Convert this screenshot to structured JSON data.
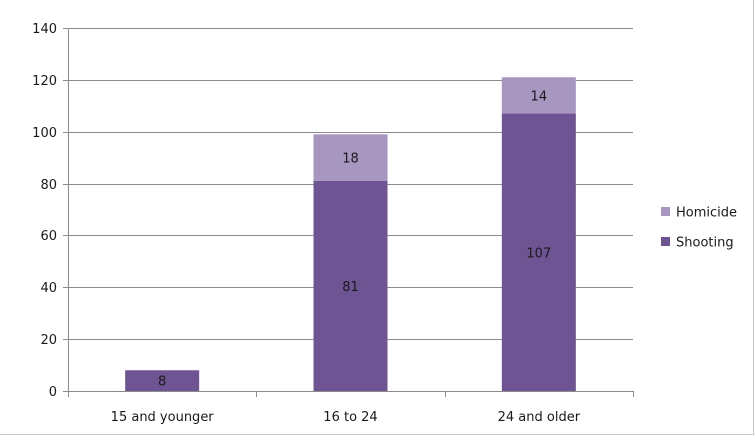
{
  "chart_data": {
    "type": "bar",
    "stacked": true,
    "categories": [
      "15 and younger",
      "16 to 24",
      "24 and older"
    ],
    "series": [
      {
        "name": "Shooting",
        "color": "#6f5493",
        "values": [
          8,
          81,
          107
        ]
      },
      {
        "name": "Homicide",
        "color": "#a696c0",
        "values": [
          0,
          18,
          14
        ]
      }
    ],
    "data_labels": [
      [
        "8",
        "81",
        "107"
      ],
      [
        "",
        "18",
        "14"
      ]
    ],
    "ylim": [
      0,
      140
    ],
    "yticks": [
      0,
      20,
      40,
      60,
      80,
      100,
      120,
      140
    ],
    "grid": true,
    "legend": "right",
    "legend_order": [
      "Homicide",
      "Shooting"
    ],
    "title": "",
    "xlabel": "",
    "ylabel": ""
  }
}
